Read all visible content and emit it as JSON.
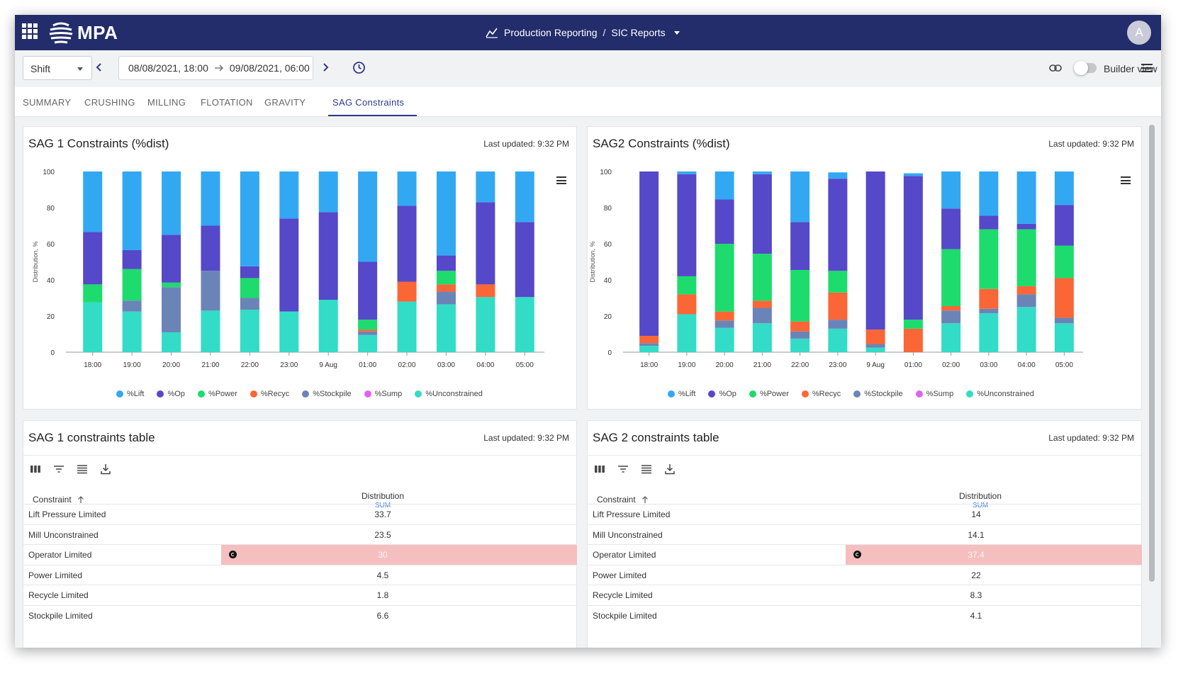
{
  "header": {
    "logo": "MPA",
    "breadcrumb_1": "Production Reporting",
    "breadcrumb_sep": "/",
    "breadcrumb_2": "SIC Reports",
    "avatar_letter": "A",
    "bg_color": "#232d6b"
  },
  "toolbar": {
    "shift_value": "Shift",
    "date_from": "08/08/2021, 18:00",
    "date_to": "09/08/2021, 06:00",
    "builder_label": "Builder view"
  },
  "tabs": [
    {
      "label": "SUMMARY"
    },
    {
      "label": "CRUSHING"
    },
    {
      "label": "MILLING"
    },
    {
      "label": "FLOTATION"
    },
    {
      "label": "GRAVITY"
    },
    {
      "label": "SAG Constraints",
      "active": true
    }
  ],
  "panels": {
    "sag1_chart_title": "SAG 1 Constraints (%dist)",
    "sag2_chart_title": "SAG2 Constraints (%dist)",
    "sag1_table_title": "SAG 1 constraints table",
    "sag2_table_title": "SAG 2 constraints table",
    "last_updated": "Last updated: 9:32 PM"
  },
  "legend": [
    {
      "name": "%Lift",
      "color": "#33a8f2"
    },
    {
      "name": "%Op",
      "color": "#5548c9"
    },
    {
      "name": "%Power",
      "color": "#1ddc6d"
    },
    {
      "name": "%Recyc",
      "color": "#fb6636"
    },
    {
      "name": "%Stockpile",
      "color": "#6b84b8"
    },
    {
      "name": "%Sump",
      "color": "#de64ee"
    },
    {
      "name": "%Unconstrained",
      "color": "#32dcc6"
    }
  ],
  "chart_data": [
    {
      "type": "bar",
      "stacked": true,
      "title": "SAG 1 Constraints (%dist)",
      "ylabel": "Distribution, %",
      "ylim": [
        0,
        100
      ],
      "yticks": [
        0,
        20,
        40,
        60,
        80,
        100
      ],
      "categories": [
        "18:00",
        "19:00",
        "20:00",
        "21:00",
        "22:00",
        "23:00",
        "9 Aug",
        "01:00",
        "02:00",
        "03:00",
        "04:00",
        "05:00"
      ],
      "series": [
        {
          "name": "%Unconstrained",
          "values": [
            27.5,
            22.5,
            11,
            23,
            23.5,
            22.5,
            29,
            9.5,
            28,
            26.5,
            30.5,
            30.5
          ]
        },
        {
          "name": "%Stockpile",
          "values": [
            0,
            6,
            25,
            22,
            6.5,
            0,
            0,
            2,
            0,
            7,
            0,
            0
          ]
        },
        {
          "name": "%Sump",
          "values": [
            0,
            0,
            0,
            0,
            0,
            0,
            0,
            0,
            0,
            0,
            0,
            0
          ]
        },
        {
          "name": "%Recyc",
          "values": [
            0,
            0,
            0,
            0,
            0,
            0,
            0,
            1,
            11,
            4,
            7,
            0
          ]
        },
        {
          "name": "%Power",
          "values": [
            10,
            17.5,
            2.5,
            0,
            11,
            0,
            0,
            5.5,
            0,
            7.5,
            0,
            0
          ]
        },
        {
          "name": "%Op",
          "values": [
            29,
            10.5,
            26.5,
            25,
            6.5,
            51.5,
            48.5,
            32,
            42,
            8.5,
            45.5,
            41.5
          ]
        },
        {
          "name": "%Lift",
          "values": [
            33.5,
            43.5,
            35,
            30,
            52.5,
            26,
            22.5,
            50,
            19,
            46.5,
            17,
            28
          ]
        }
      ]
    },
    {
      "type": "bar",
      "stacked": true,
      "title": "SAG2 Constraints (%dist)",
      "ylabel": "Distribution, %",
      "ylim": [
        0,
        100
      ],
      "yticks": [
        0,
        20,
        40,
        60,
        80,
        100
      ],
      "categories": [
        "18:00",
        "19:00",
        "20:00",
        "21:00",
        "22:00",
        "23:00",
        "9 Aug",
        "01:00",
        "02:00",
        "03:00",
        "04:00",
        "05:00"
      ],
      "series": [
        {
          "name": "%Unconstrained",
          "values": [
            3.5,
            21,
            13.5,
            16,
            7.5,
            13,
            2.5,
            0,
            16,
            21.5,
            25,
            16
          ]
        },
        {
          "name": "%Stockpile",
          "values": [
            1.5,
            0,
            4,
            8.5,
            4,
            5,
            2,
            0,
            7,
            2.5,
            7,
            3
          ]
        },
        {
          "name": "%Sump",
          "values": [
            0,
            0,
            0,
            0,
            0,
            0,
            0,
            0,
            0,
            0,
            0,
            0
          ]
        },
        {
          "name": "%Recyc",
          "values": [
            4,
            11,
            5,
            4,
            5.5,
            15,
            8,
            13,
            2.5,
            11,
            4.5,
            22
          ]
        },
        {
          "name": "%Power",
          "values": [
            0,
            10,
            37.5,
            26,
            28.5,
            12,
            0,
            5,
            31.5,
            33,
            31.5,
            18
          ]
        },
        {
          "name": "%Op",
          "values": [
            91,
            56.5,
            24.5,
            44,
            26.5,
            51,
            87.5,
            79.5,
            22.5,
            7.5,
            3,
            22.5
          ]
        },
        {
          "name": "%Lift",
          "values": [
            0,
            1.5,
            15.5,
            1.5,
            28,
            3.5,
            0,
            1.5,
            20.5,
            24.5,
            29,
            18.5
          ]
        }
      ]
    }
  ],
  "tables": {
    "col_constraint": "Constraint",
    "col_distribution": "Distribution",
    "col_agg": "SUM",
    "sag1_rows": [
      {
        "name": "Lift Pressure Limited",
        "value": "33.7"
      },
      {
        "name": "Mill Unconstrained",
        "value": "23.5"
      },
      {
        "name": "Operator Limited",
        "value": "30",
        "highlight": true
      },
      {
        "name": "Power Limited",
        "value": "4.5"
      },
      {
        "name": "Recycle Limited",
        "value": "1.8"
      },
      {
        "name": "Stockpile Limited",
        "value": "6.6"
      }
    ],
    "sag2_rows": [
      {
        "name": "Lift Pressure Limited",
        "value": "14"
      },
      {
        "name": "Mill Unconstrained",
        "value": "14.1"
      },
      {
        "name": "Operator Limited",
        "value": "37.4",
        "highlight": true
      },
      {
        "name": "Power Limited",
        "value": "22"
      },
      {
        "name": "Recycle Limited",
        "value": "8.3"
      },
      {
        "name": "Stockpile Limited",
        "value": "4.1"
      }
    ]
  }
}
